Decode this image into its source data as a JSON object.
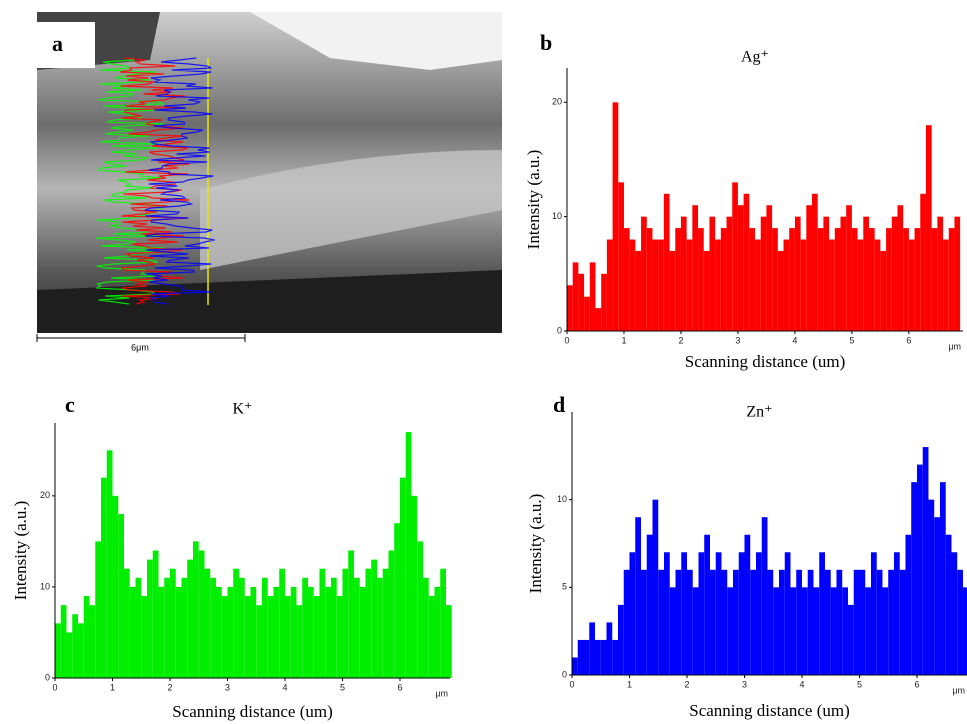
{
  "image": {
    "label": "a",
    "scale_bar": "6μm"
  },
  "chart_data": [
    {
      "type": "histogram",
      "label": "b",
      "title": "Ag⁺",
      "x_label": "Scanning distance (um)",
      "y_label": "Intensity (a.u.)",
      "x_unit": "μm",
      "color": "#ff0000",
      "bins": [
        0,
        0.1,
        0.2,
        0.3,
        0.4,
        0.5,
        0.6,
        0.7,
        0.8,
        0.9,
        1,
        1.1,
        1.2,
        1.3,
        1.4,
        1.5,
        1.6,
        1.7,
        1.8,
        1.9,
        2,
        2.1,
        2.2,
        2.3,
        2.4,
        2.5,
        2.6,
        2.7,
        2.8,
        2.9,
        3,
        3.1,
        3.2,
        3.3,
        3.4,
        3.5,
        3.6,
        3.7,
        3.8,
        3.9,
        4,
        4.1,
        4.2,
        4.3,
        4.4,
        4.5,
        4.6,
        4.7,
        4.8,
        4.9,
        5,
        5.1,
        5.2,
        5.3,
        5.4,
        5.5,
        5.6,
        5.7,
        5.8,
        5.9,
        6,
        6.1,
        6.2,
        6.3,
        6.4,
        6.5,
        6.6,
        6.7,
        6.8,
        6.9
      ],
      "values": [
        4,
        6,
        5,
        3,
        6,
        2,
        5,
        8,
        20,
        13,
        9,
        8,
        7,
        10,
        9,
        8,
        8,
        12,
        7,
        9,
        10,
        8,
        11,
        9,
        7,
        10,
        8,
        9,
        10,
        13,
        11,
        12,
        9,
        8,
        10,
        11,
        9,
        7,
        8,
        9,
        10,
        8,
        11,
        12,
        9,
        10,
        8,
        9,
        10,
        11,
        9,
        8,
        10,
        9,
        8,
        7,
        9,
        10,
        11,
        9,
        8,
        9,
        12,
        18,
        9,
        10,
        8,
        9,
        10
      ],
      "xlim": [
        0,
        6.95
      ],
      "xticks": [
        0,
        1,
        2,
        3,
        4,
        5,
        6
      ],
      "ylim": [
        0,
        23
      ],
      "yticks": [
        0,
        10,
        20
      ]
    },
    {
      "type": "histogram",
      "label": "c",
      "title": "K⁺",
      "x_label": "Scanning distance (um)",
      "y_label": "Intensity (a.u.)",
      "x_unit": "μm",
      "color": "#00ee00",
      "bins": [
        0,
        0.1,
        0.2,
        0.3,
        0.4,
        0.5,
        0.6,
        0.7,
        0.8,
        0.9,
        1,
        1.1,
        1.2,
        1.3,
        1.4,
        1.5,
        1.6,
        1.7,
        1.8,
        1.9,
        2,
        2.1,
        2.2,
        2.3,
        2.4,
        2.5,
        2.6,
        2.7,
        2.8,
        2.9,
        3,
        3.1,
        3.2,
        3.3,
        3.4,
        3.5,
        3.6,
        3.7,
        3.8,
        3.9,
        4,
        4.1,
        4.2,
        4.3,
        4.4,
        4.5,
        4.6,
        4.7,
        4.8,
        4.9,
        5,
        5.1,
        5.2,
        5.3,
        5.4,
        5.5,
        5.6,
        5.7,
        5.8,
        5.9,
        6,
        6.1,
        6.2,
        6.3,
        6.4,
        6.5,
        6.6,
        6.7,
        6.8,
        6.9
      ],
      "values": [
        6,
        8,
        5,
        7,
        6,
        9,
        8,
        15,
        22,
        25,
        20,
        18,
        12,
        10,
        11,
        9,
        13,
        14,
        10,
        11,
        12,
        10,
        11,
        13,
        15,
        14,
        12,
        11,
        10,
        9,
        10,
        12,
        11,
        9,
        10,
        8,
        11,
        9,
        10,
        12,
        9,
        10,
        8,
        11,
        10,
        9,
        12,
        10,
        11,
        9,
        12,
        14,
        11,
        10,
        12,
        13,
        11,
        12,
        14,
        17,
        22,
        27,
        20,
        15,
        11,
        9,
        10,
        12,
        8
      ],
      "xlim": [
        0,
        6.87
      ],
      "xticks": [
        0,
        1,
        2,
        3,
        4,
        5,
        6
      ],
      "ylim": [
        0,
        28
      ],
      "yticks": [
        0,
        10,
        20
      ]
    },
    {
      "type": "histogram",
      "label": "d",
      "title": "Zn⁺",
      "x_label": "Scanning distance (um)",
      "y_label": "Intensity (a.u.)",
      "x_unit": "μm",
      "color": "#0000ff",
      "bins": [
        0,
        0.1,
        0.2,
        0.3,
        0.4,
        0.5,
        0.6,
        0.7,
        0.8,
        0.9,
        1,
        1.1,
        1.2,
        1.3,
        1.4,
        1.5,
        1.6,
        1.7,
        1.8,
        1.9,
        2,
        2.1,
        2.2,
        2.3,
        2.4,
        2.5,
        2.6,
        2.7,
        2.8,
        2.9,
        3,
        3.1,
        3.2,
        3.3,
        3.4,
        3.5,
        3.6,
        3.7,
        3.8,
        3.9,
        4,
        4.1,
        4.2,
        4.3,
        4.4,
        4.5,
        4.6,
        4.7,
        4.8,
        4.9,
        5,
        5.1,
        5.2,
        5.3,
        5.4,
        5.5,
        5.6,
        5.7,
        5.8,
        5.9,
        6,
        6.1,
        6.2,
        6.3,
        6.4,
        6.5,
        6.6,
        6.7,
        6.8,
        6.9
      ],
      "values": [
        1,
        2,
        2,
        3,
        2,
        2,
        3,
        2,
        4,
        6,
        7,
        9,
        6,
        8,
        10,
        6,
        7,
        5,
        6,
        7,
        6,
        5,
        7,
        8,
        6,
        7,
        6,
        5,
        6,
        7,
        8,
        6,
        7,
        9,
        6,
        5,
        6,
        7,
        5,
        6,
        5,
        6,
        5,
        7,
        6,
        5,
        6,
        5,
        4,
        6,
        6,
        5,
        7,
        6,
        5,
        6,
        7,
        6,
        8,
        11,
        12,
        13,
        10,
        9,
        11,
        8,
        7,
        6,
        5
      ],
      "xlim": [
        0,
        6.87
      ],
      "xticks": [
        0,
        1,
        2,
        3,
        4,
        5,
        6
      ],
      "ylim": [
        0,
        15
      ],
      "yticks": [
        0,
        5,
        10
      ]
    }
  ]
}
